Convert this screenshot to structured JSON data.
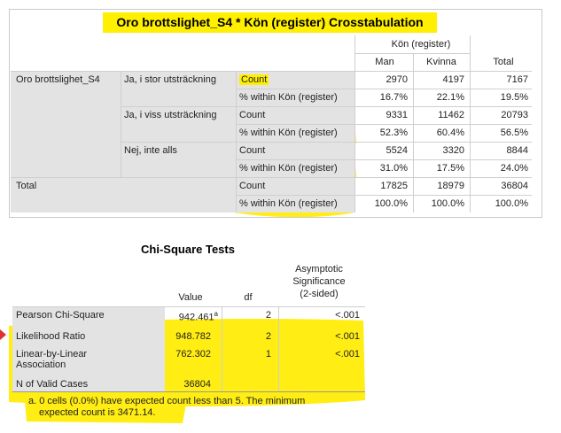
{
  "crosstab": {
    "title": "Oro brottslighet_S4 * Kön (register) Crosstabulation",
    "group_header": "Kön (register)",
    "columns": [
      "Man",
      "Kvinna",
      "Total"
    ],
    "row_variable": "Oro brottslighet_S4",
    "row_groups": [
      {
        "label": "Ja, i stor utsträckning",
        "count": {
          "stat": "Count",
          "values": [
            "2970",
            "4197",
            "7167"
          ]
        },
        "pct": {
          "stat": "% within Kön (register)",
          "values": [
            "16.7%",
            "22.1%",
            "19.5%"
          ]
        }
      },
      {
        "label": "Ja, i viss utsträckning",
        "count": {
          "stat": "Count",
          "values": [
            "9331",
            "11462",
            "20793"
          ]
        },
        "pct": {
          "stat": "% within Kön (register)",
          "values": [
            "52.3%",
            "60.4%",
            "56.5%"
          ]
        }
      },
      {
        "label": "Nej, inte alls",
        "count": {
          "stat": "Count",
          "values": [
            "5524",
            "3320",
            "8844"
          ]
        },
        "pct": {
          "stat": "% within Kön (register)",
          "values": [
            "31.0%",
            "17.5%",
            "24.0%"
          ]
        }
      }
    ],
    "total": {
      "label": "Total",
      "count": {
        "stat": "Count",
        "values": [
          "17825",
          "18979",
          "36804"
        ]
      },
      "pct": {
        "stat": "% within Kön (register)",
        "values": [
          "100.0%",
          "100.0%",
          "100.0%"
        ]
      }
    }
  },
  "chi_square": {
    "title": "Chi-Square Tests",
    "headers": {
      "value": "Value",
      "df": "df",
      "sig_line1": "Asymptotic",
      "sig_line2": "Significance",
      "sig_line3": "(2-sided)"
    },
    "rows": [
      {
        "label": "Pearson Chi-Square",
        "value": "942.461",
        "sup": "a",
        "df": "2",
        "sig": "<.001"
      },
      {
        "label": "Likelihood Ratio",
        "value": "948.782",
        "sup": "",
        "df": "2",
        "sig": "<.001"
      },
      {
        "label_line1": "Linear-by-Linear",
        "label_line2": "Association",
        "value": "762.302",
        "sup": "",
        "df": "1",
        "sig": "<.001"
      },
      {
        "label": "N of Valid Cases",
        "value": "36804",
        "sup": "",
        "df": "",
        "sig": ""
      }
    ],
    "footnote_line1": "a. 0 cells (0.0%) have expected count less than 5. The minimum",
    "footnote_line2": "expected count is 3471.14."
  },
  "colors": {
    "highlighter": "#ffef00",
    "label_fill": "#e3e3e3",
    "marker": "#e03030"
  }
}
